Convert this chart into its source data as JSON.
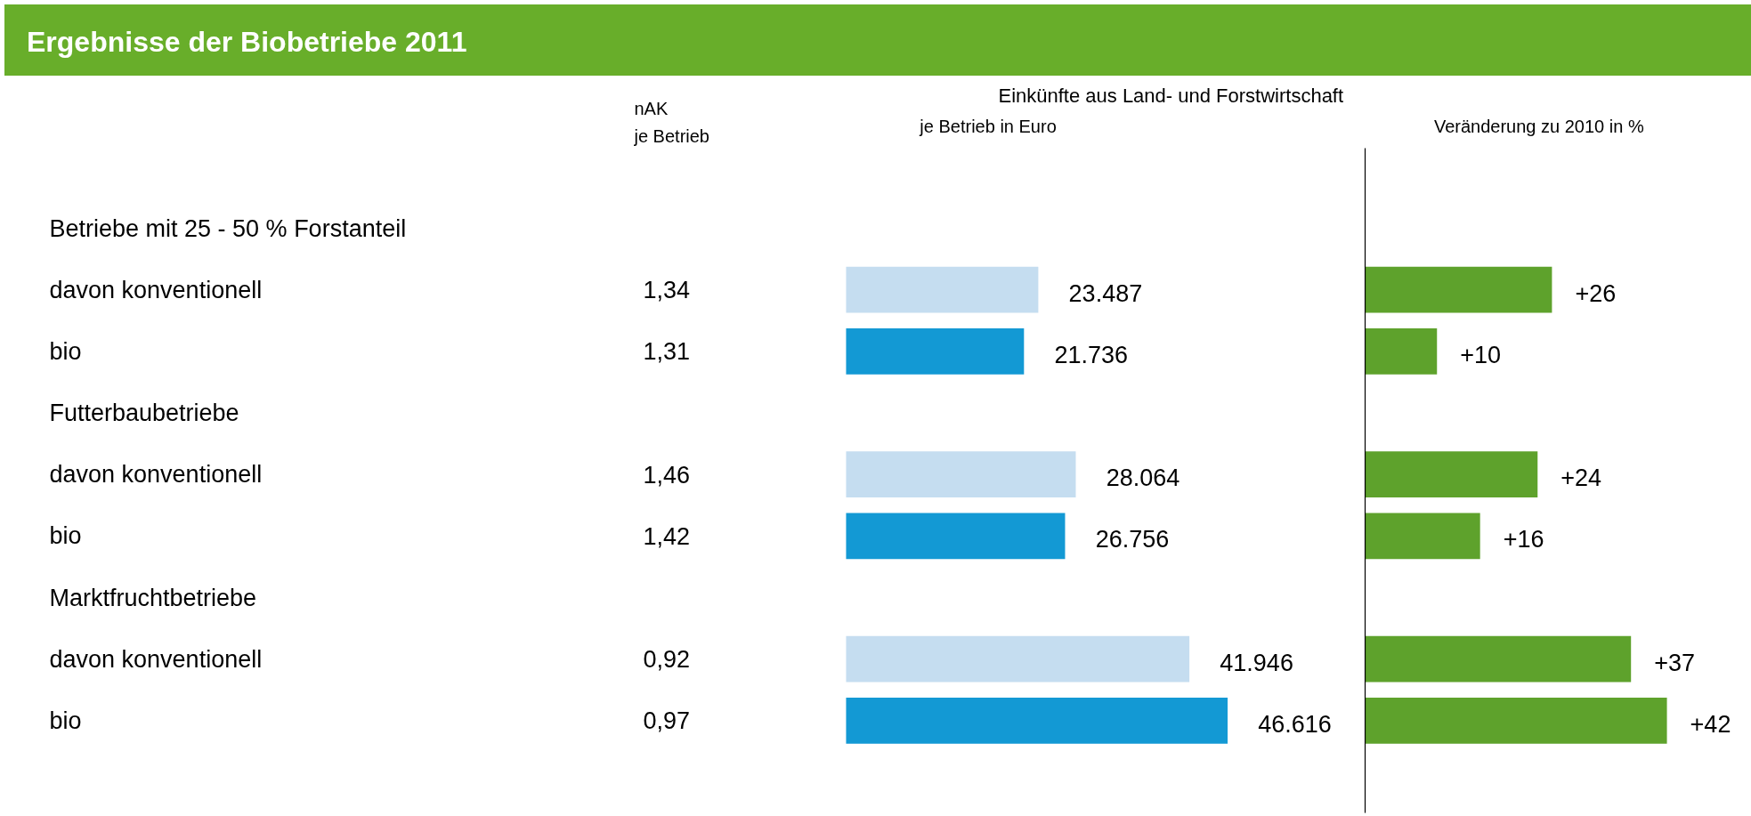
{
  "chart_data": [
    {
      "type": "other",
      "title": "Ergebnisse der Biobetriebe 2011",
      "annotations": [
        "nAK",
        "je Betrieb"
      ],
      "categories": [
        "Betriebe mit 25 - 50 % Forstanteil",
        "davon   konventionell",
        "bio",
        "Futterbaubetriebe",
        "davon   konventionell",
        "bio",
        "Marktfruchtbetriebe",
        "davon   konventionell",
        "bio"
      ],
      "values": [
        null,
        1.34,
        1.31,
        null,
        1.46,
        1.42,
        null,
        0.92,
        0.97
      ],
      "value_labels": [
        null,
        "1,34",
        "1,31",
        null,
        "1,46",
        "1,42",
        null,
        "0,92",
        "0,97"
      ]
    },
    {
      "type": "bar",
      "orientation": "horizontal",
      "title": "Einkünfte aus Land- und Forstwirtschaft",
      "subtitle": "je Betrieb in Euro",
      "categories": [
        null,
        null,
        null,
        null,
        null,
        null
      ],
      "values": [
        23487,
        21736,
        28064,
        26756,
        41946,
        46616
      ],
      "colors": [
        "#c5ddf0",
        "#1399d4",
        "#c5ddf0",
        "#1399d4",
        "#c5ddf0",
        "#1399d4"
      ],
      "value_labels": [
        "23.487",
        "21.736",
        "28.064",
        "26.756",
        "41.946",
        "46.616"
      ]
    },
    {
      "type": "bar",
      "orientation": "horizontal",
      "title": "Veränderung zu 2010 in %",
      "categories": [
        null,
        null,
        null,
        null,
        null,
        null
      ],
      "values": [
        26,
        10,
        24,
        16,
        37,
        42
      ],
      "colors": [
        "#5ea22c",
        "#5ea22c",
        "#5ea22c",
        "#5ea22c",
        "#5ea22c",
        "#5ea22c"
      ],
      "value_labels": [
        "+26",
        "+10",
        "+24",
        "+16",
        "+37",
        "+42"
      ]
    }
  ]
}
